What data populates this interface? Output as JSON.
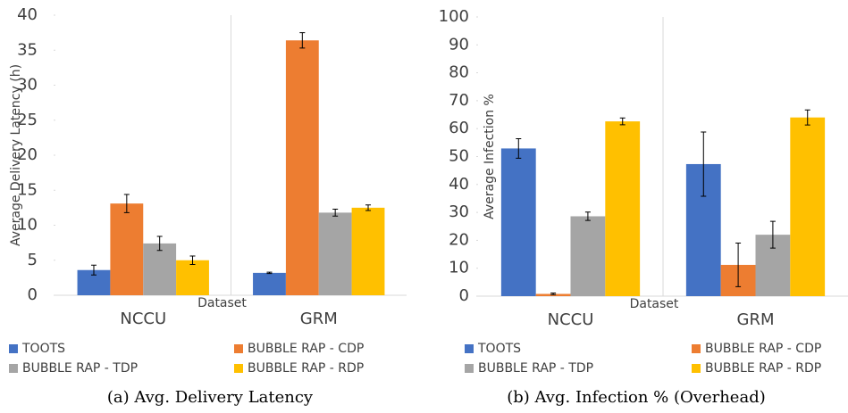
{
  "chart_data": [
    {
      "type": "bar",
      "caption": "(a) Avg. Delivery Latency",
      "x_label": "Dataset",
      "y_label": "Average Delivery Latency (h)",
      "categories": [
        "NCCU",
        "GRM"
      ],
      "series": [
        {
          "name": "TOOTS",
          "color": "#4472c4",
          "values": [
            3.6,
            3.2
          ],
          "errors": [
            0.7,
            0.1
          ]
        },
        {
          "name": "BUBBLE RAP - CDP",
          "color": "#ed7d31",
          "values": [
            13.1,
            36.4
          ],
          "errors": [
            1.3,
            1.1
          ]
        },
        {
          "name": "BUBBLE RAP - TDP",
          "color": "#a5a5a5",
          "values": [
            7.4,
            11.8
          ],
          "errors": [
            1.0,
            0.5
          ]
        },
        {
          "name": "BUBBLE RAP - RDP",
          "color": "#ffc000",
          "values": [
            5.0,
            12.5
          ],
          "errors": [
            0.6,
            0.4
          ]
        }
      ],
      "ylim": [
        0,
        40
      ],
      "yticks": [
        0,
        5,
        10,
        15,
        20,
        25,
        30,
        35,
        40
      ]
    },
    {
      "type": "bar",
      "caption": "(b) Avg. Infection % (Overhead)",
      "x_label": "Dataset",
      "y_label": "Average Infection %",
      "categories": [
        "NCCU",
        "GRM"
      ],
      "series": [
        {
          "name": "TOOTS",
          "color": "#4472c4",
          "values": [
            52.9,
            47.3
          ],
          "errors": [
            3.5,
            11.5
          ]
        },
        {
          "name": "BUBBLE RAP - CDP",
          "color": "#ed7d31",
          "values": [
            0.8,
            11.2
          ],
          "errors": [
            0.3,
            7.8
          ]
        },
        {
          "name": "BUBBLE RAP - TDP",
          "color": "#a5a5a5",
          "values": [
            28.6,
            22.0
          ],
          "errors": [
            1.5,
            4.8
          ]
        },
        {
          "name": "BUBBLE RAP - RDP",
          "color": "#ffc000",
          "values": [
            62.6,
            64.0
          ],
          "errors": [
            1.2,
            2.7
          ]
        }
      ],
      "ylim": [
        0,
        100
      ],
      "yticks": [
        0,
        10,
        20,
        30,
        40,
        50,
        60,
        70,
        80,
        90,
        100
      ]
    }
  ]
}
